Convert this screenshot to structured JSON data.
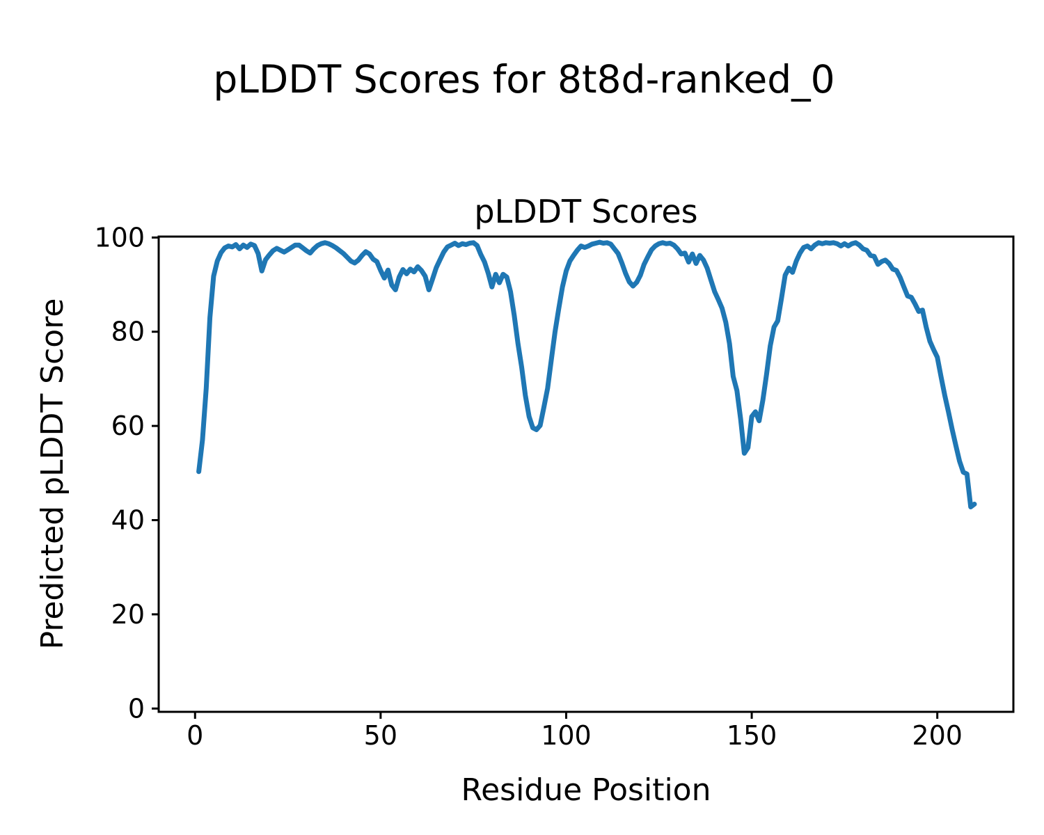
{
  "figure": {
    "suptitle": "pLDDT Scores for 8t8d-ranked_0",
    "axes_title": "pLDDT Scores",
    "xlabel": "Residue Position",
    "ylabel": "Predicted pLDDT Score",
    "background": "#ffffff",
    "text_color": "#000000"
  },
  "chart_data": {
    "type": "line",
    "title": "pLDDT Scores",
    "xlabel": "Residue Position",
    "ylabel": "Predicted pLDDT Score",
    "grid": false,
    "legend_position": "none",
    "line_color": "#1f77b4",
    "line_width": 7,
    "spine_color": "#000000",
    "xlim": [
      -9.8,
      220.5
    ],
    "ylim": [
      -0.7,
      100.2
    ],
    "xticks": [
      0,
      50,
      100,
      150,
      200
    ],
    "yticks": [
      0,
      20,
      40,
      60,
      80,
      100
    ],
    "x_start": 1,
    "x_step": 1,
    "values": [
      50.3,
      57,
      68,
      83,
      91.8,
      95,
      96.8,
      97.8,
      98.2,
      98,
      98.5,
      97.6,
      98.4,
      97.9,
      98.6,
      98.3,
      96.6,
      92.9,
      95.3,
      96.3,
      97.2,
      97.7,
      97.3,
      96.9,
      97.4,
      97.9,
      98.4,
      98.4,
      97.8,
      97.2,
      96.7,
      97.6,
      98.3,
      98.7,
      98.9,
      98.7,
      98.3,
      97.8,
      97.2,
      96.6,
      95.8,
      95,
      94.6,
      95.2,
      96.2,
      97,
      96.5,
      95.4,
      94.9,
      93,
      91.4,
      93.1,
      89.9,
      88.9,
      91.6,
      93.2,
      92.3,
      93.3,
      92.7,
      93.8,
      93,
      91.8,
      88.9,
      91.2,
      93.6,
      95.3,
      96.9,
      98,
      98.4,
      98.8,
      98.3,
      98.7,
      98.5,
      98.8,
      98.9,
      98.3,
      96.4,
      94.8,
      92.4,
      89.5,
      92.2,
      90.4,
      92.2,
      91.6,
      88.5,
      83.5,
      77.5,
      72.5,
      66.5,
      62,
      59.6,
      59.2,
      60.1,
      64,
      68,
      74,
      80,
      84.9,
      89.5,
      92.9,
      95,
      96.2,
      97.3,
      98.2,
      97.9,
      98.2,
      98.6,
      98.8,
      99,
      98.8,
      98.9,
      98.6,
      97.6,
      96.6,
      94.6,
      92.4,
      90.6,
      89.7,
      90.5,
      92,
      94.3,
      95.9,
      97.4,
      98.2,
      98.7,
      98.9,
      98.7,
      98.8,
      98.4,
      97.6,
      96.5,
      96.7,
      94.8,
      96.5,
      94.5,
      96.2,
      95.2,
      93.5,
      91,
      88.5,
      86.8,
      85,
      82,
      77.5,
      70.5,
      67.5,
      61.5,
      54.2,
      55.4,
      62,
      63,
      61.1,
      65.5,
      71,
      77,
      81,
      82.3,
      87,
      92,
      93.5,
      92.6,
      95,
      96.7,
      97.9,
      98.2,
      97.6,
      98.4,
      98.9,
      98.7,
      98.9,
      98.8,
      98.9,
      98.7,
      98.2,
      98.7,
      98.2,
      98.7,
      98.9,
      98.4,
      97.6,
      97.3,
      96.2,
      96,
      94.3,
      94.9,
      95.2,
      94.5,
      93.3,
      93,
      91.5,
      89.5,
      87.6,
      87.3,
      85.9,
      84.3,
      84.6,
      81,
      78,
      76.2,
      74.6,
      70.5,
      66.5,
      63,
      59.3,
      55.8,
      52.5,
      50.2,
      49.8,
      42.8,
      43.4
    ]
  }
}
